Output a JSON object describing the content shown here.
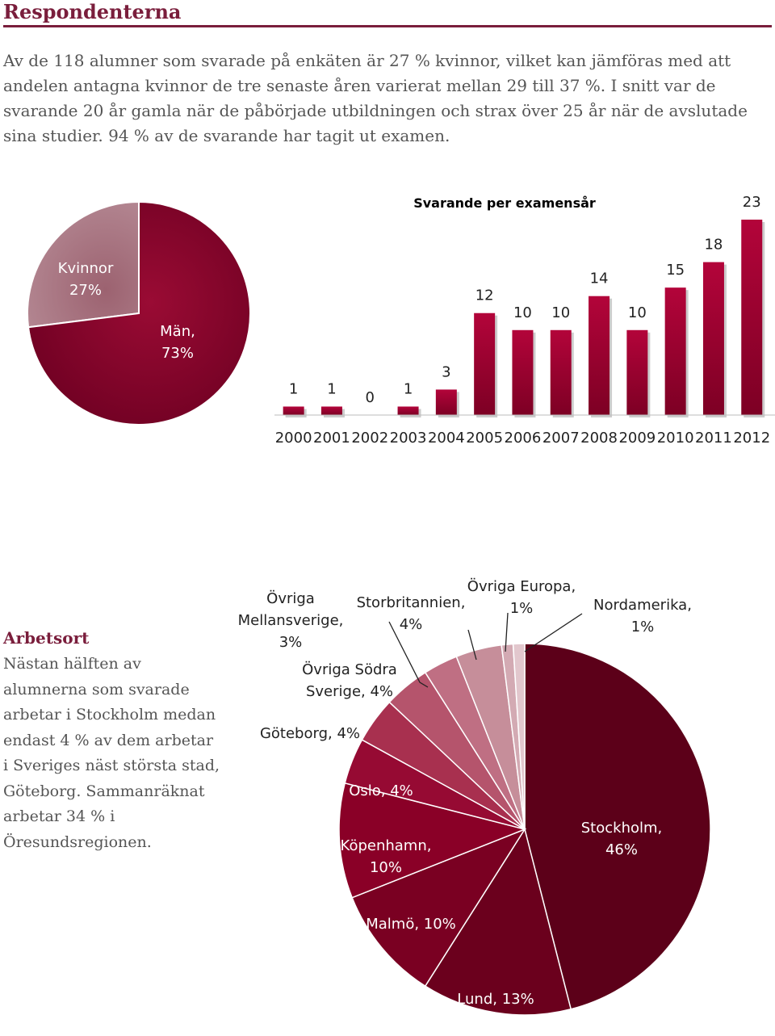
{
  "heading": "Respondenterna",
  "intro": "Av de 118 alumner som svarade på enkäten är 27 % kvinnor, vilket kan jämföras med att andelen antagna kvinnor de tre senaste åren varierat mellan 29 till 37 %. I snitt var de svarande 20 år gamla när de påbörjade utbildningen och strax över 25 år när de avslutade sina studier. 94 % av de svarande har tagit ut examen.",
  "sidebar": {
    "title": "Arbetsort",
    "text": "Nästan hälften av alumnerna som svarade arbetar i Stockholm medan endast 4 % av dem arbetar i Sveriges näst största stad, Göteborg. Sammanräknat arbetar 34 % i Öresundsregionen."
  },
  "colors": {
    "accent": "#7a1e3c",
    "dark_red": "#8b0a2e",
    "light_red": "#a86f7b"
  },
  "chart_data": [
    {
      "type": "pie",
      "labels": [
        "Kvinnor",
        "Män"
      ],
      "values": [
        27,
        73
      ],
      "label_text": [
        "Kvinnor\n27%",
        "Män,\n73%"
      ],
      "colors": [
        "#a86f7b",
        "#8b0a2e"
      ]
    },
    {
      "type": "bar",
      "title": "Svarande per examensår",
      "categories": [
        "2000",
        "2001",
        "2002",
        "2003",
        "2004",
        "2005",
        "2006",
        "2007",
        "2008",
        "2009",
        "2010",
        "2011",
        "2012"
      ],
      "values": [
        1,
        1,
        0,
        1,
        3,
        12,
        10,
        10,
        14,
        10,
        15,
        18,
        23
      ],
      "ylim": [
        0,
        23
      ],
      "grid": false,
      "color": "#a0032e"
    },
    {
      "type": "pie",
      "labels": [
        "Stockholm",
        "Lund",
        "Malmö",
        "Köpenhamn",
        "Oslo",
        "Göteborg",
        "Övriga Södra Sverige",
        "Övriga Mellansverige",
        "Storbritannien",
        "Övriga Europa",
        "Nordamerika"
      ],
      "values": [
        46,
        13,
        10,
        10,
        4,
        4,
        4,
        3,
        4,
        1,
        1
      ],
      "label_text": [
        "Stockholm,\n46%",
        "Lund, 13%",
        "Malmö, 10%",
        "Köpenhamn,\n10%",
        "Oslo, 4%",
        "Göteborg, 4%",
        "Övriga Södra\nSverige, 4%",
        "Övriga\nMellansverige,\n3%",
        "Storbritannien,\n4%",
        "Övriga Europa,\n1%",
        "Nordamerika,\n1%"
      ],
      "colors": [
        "#5c0019",
        "#6b001d",
        "#7a0022",
        "#8a0027",
        "#960a33",
        "#a8304f",
        "#b5546c",
        "#bf6f83",
        "#c68e9a",
        "#d3aab3",
        "#e2c7cd"
      ]
    }
  ]
}
